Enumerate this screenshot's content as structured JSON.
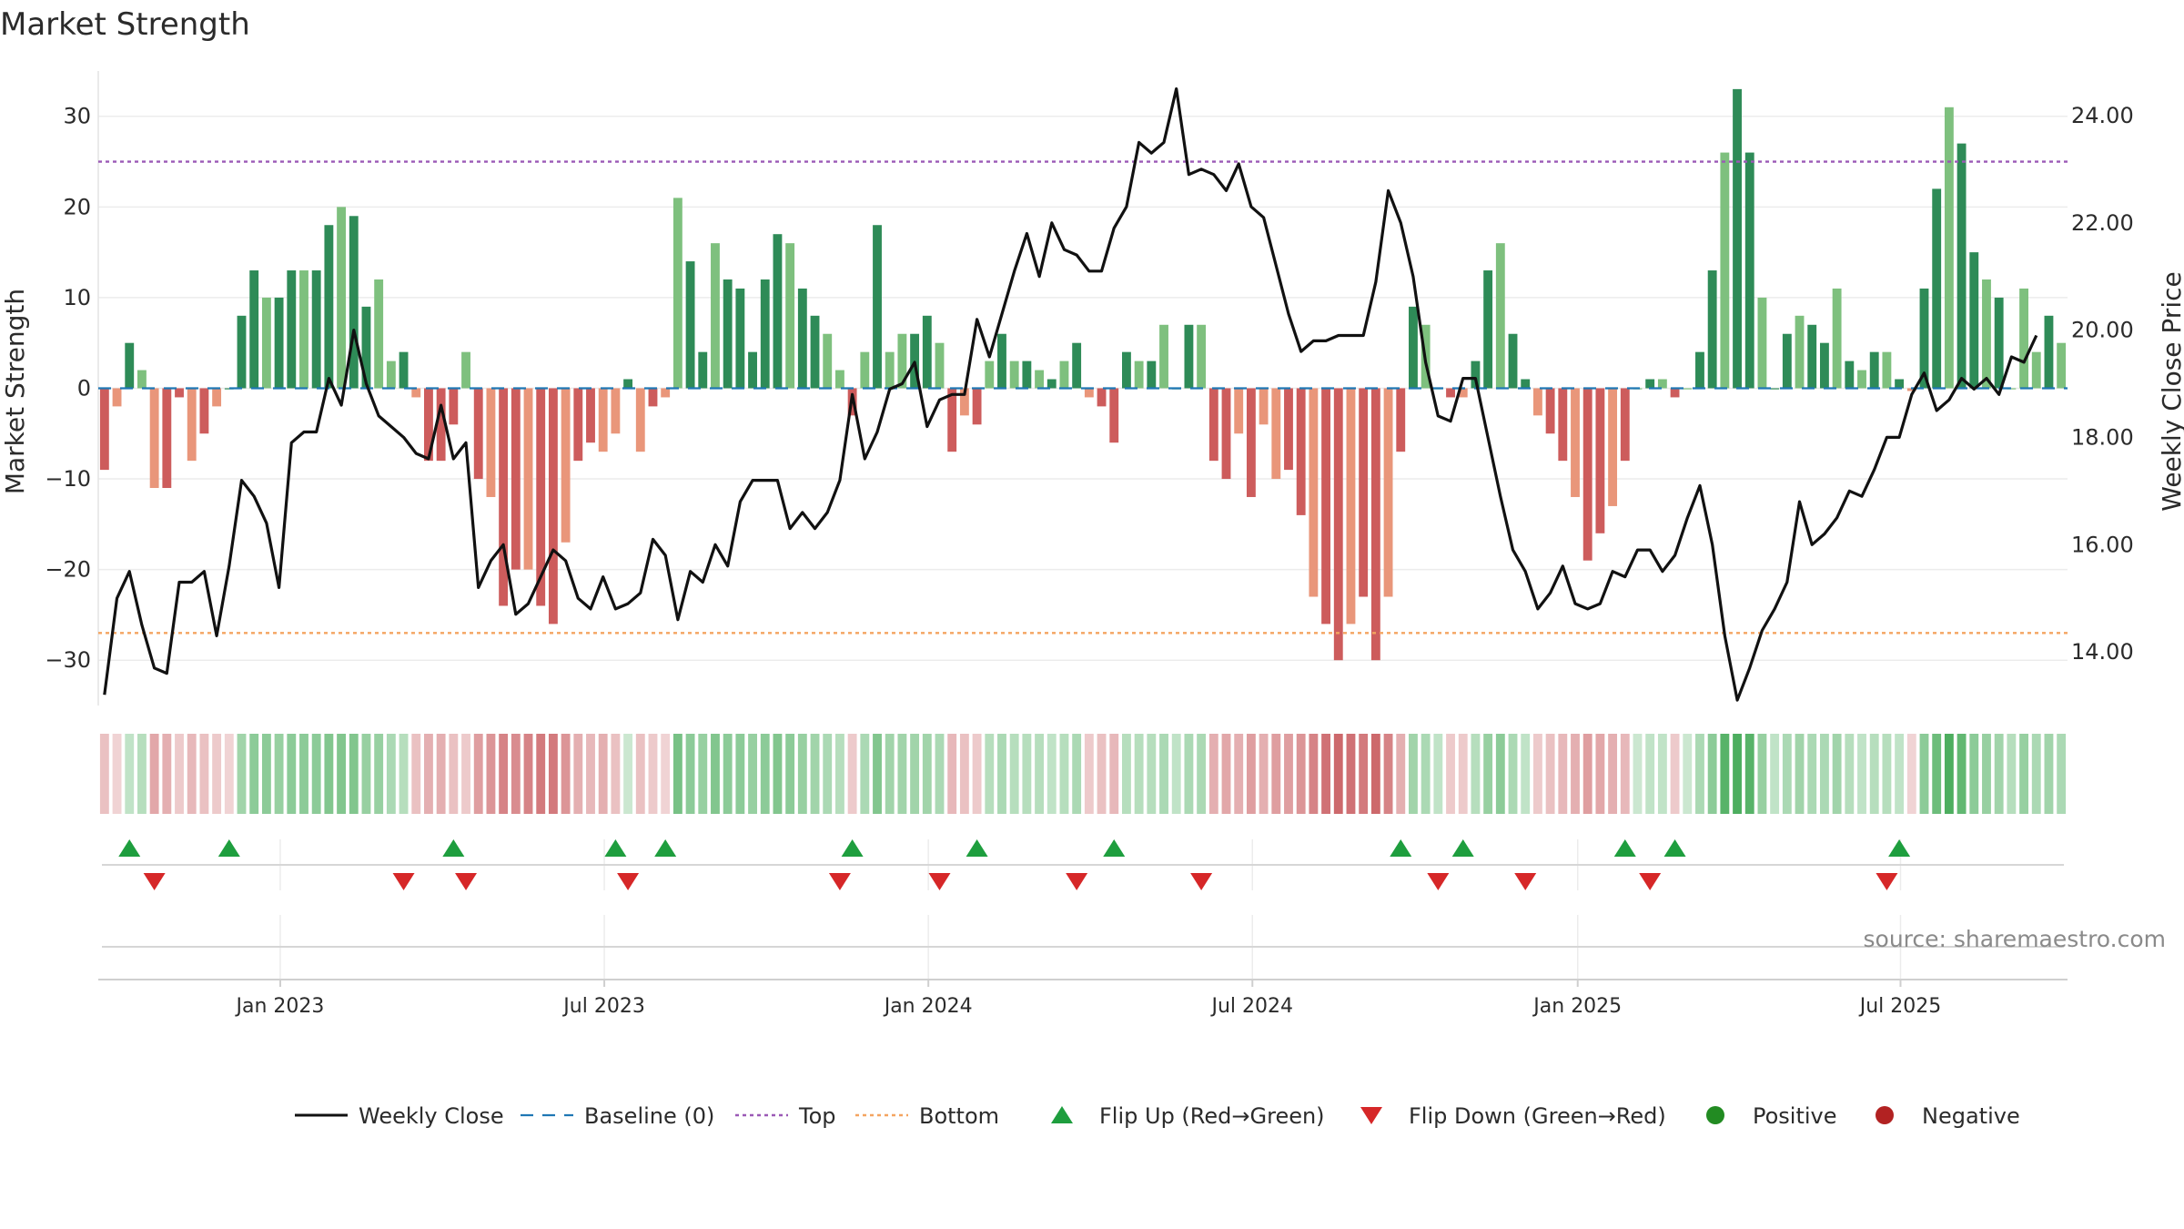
{
  "chart_data": {
    "type": "bar+line",
    "title": "Market Strength",
    "ylabel_left": "Market Strength",
    "ylabel_right": "Weekly Close Price",
    "source": "source: sharemaestro.com",
    "left_yticks": [
      "30",
      "20",
      "10",
      "0",
      "−10",
      "−20",
      "−30"
    ],
    "left_ytick_values": [
      30,
      20,
      10,
      0,
      -10,
      -20,
      -30
    ],
    "left_ylim": [
      -35,
      36
    ],
    "right_yticks": [
      "24.00",
      "22.00",
      "20.00",
      "18.00",
      "16.00",
      "14.00"
    ],
    "right_ytick_values": [
      24,
      22,
      20,
      18,
      16,
      14
    ],
    "right_ylim": [
      13.0,
      25.0
    ],
    "xticks": [
      "Jan 2023",
      "Jul 2023",
      "Jan 2024",
      "Jul 2024",
      "Jan 2025",
      "Jul 2025"
    ],
    "xtick_positions": [
      14.6,
      40.6,
      66.6,
      92.6,
      118.7,
      144.6
    ],
    "start_week": "2022-09-12",
    "top_line": 25,
    "bottom_line": -27,
    "grid": true,
    "colors": {
      "pos_strong": "#2e8b57",
      "pos_weak": "#7ec07e",
      "neg_strong": "#cd5c5c",
      "neg_weak": "#e9967a",
      "line": "#111111",
      "baseline": "#1f77b4",
      "top": "#9b59b6",
      "bottom": "#f4a460",
      "flip_up": "#1e9e3e",
      "flip_down": "#d62728",
      "positive": "#228b22",
      "negative": "#b22222"
    },
    "strength": [
      -9,
      -2,
      5,
      2,
      -11,
      -11,
      -1,
      -8,
      -5,
      -2,
      0,
      8,
      13,
      10,
      10,
      13,
      13,
      13,
      18,
      20,
      19,
      9,
      12,
      3,
      4,
      -1,
      -8,
      -8,
      -4,
      4,
      -10,
      -12,
      -24,
      -20,
      -20,
      -24,
      -26,
      -17,
      -8,
      -6,
      -7,
      -5,
      1,
      -7,
      -2,
      -1,
      21,
      14,
      4,
      16,
      12,
      11,
      4,
      12,
      17,
      16,
      11,
      8,
      6,
      2,
      -3,
      4,
      18,
      4,
      6,
      6,
      8,
      5,
      -7,
      -3,
      -4,
      3,
      6,
      3,
      3,
      2,
      1,
      3,
      5,
      -1,
      -2,
      -6,
      4,
      3,
      3,
      7,
      0,
      7,
      7,
      -8,
      -10,
      -5,
      -12,
      -4,
      -10,
      -9,
      -14,
      -23,
      -26,
      -30,
      -26,
      -23,
      -30,
      -23,
      -7,
      9,
      7,
      0,
      -1,
      -1,
      3,
      13,
      16,
      6,
      1,
      -3,
      -5,
      -8,
      -12,
      -19,
      -16,
      -13,
      -8,
      0,
      1,
      1,
      -1,
      0,
      4,
      13,
      26,
      33,
      26,
      10,
      0,
      6,
      8,
      7,
      5,
      11,
      3,
      2,
      4,
      4,
      1,
      -0.3,
      11,
      22,
      31,
      27,
      15,
      12,
      10,
      0,
      11,
      4,
      8,
      5
    ],
    "close": [
      13.2,
      15.0,
      15.5,
      14.5,
      13.7,
      13.6,
      15.3,
      15.3,
      15.5,
      14.3,
      15.6,
      17.2,
      16.9,
      16.4,
      15.2,
      17.9,
      18.1,
      18.1,
      19.1,
      18.6,
      20.0,
      19.0,
      18.4,
      18.2,
      18.0,
      17.7,
      17.6,
      18.6,
      17.6,
      17.9,
      15.2,
      15.7,
      16.0,
      14.7,
      14.9,
      15.4,
      15.9,
      15.7,
      15.0,
      14.8,
      15.4,
      14.8,
      14.9,
      15.1,
      16.1,
      15.8,
      14.6,
      15.5,
      15.3,
      16.0,
      15.6,
      16.8,
      17.2,
      17.2,
      17.2,
      16.3,
      16.6,
      16.3,
      16.6,
      17.2,
      18.8,
      17.6,
      18.1,
      18.9,
      19.0,
      19.4,
      18.2,
      18.7,
      18.8,
      18.8,
      20.2,
      19.5,
      20.3,
      21.1,
      21.8,
      21.0,
      22.0,
      21.5,
      21.4,
      21.1,
      21.1,
      21.9,
      22.3,
      23.5,
      23.3,
      23.5,
      24.5,
      22.9,
      23.0,
      22.9,
      22.6,
      23.1,
      22.3,
      22.1,
      21.2,
      20.3,
      19.6,
      19.8,
      19.8,
      19.9,
      19.9,
      19.9,
      20.9,
      22.6,
      22.0,
      21.0,
      19.4,
      18.4,
      18.3,
      19.1,
      19.1,
      18.0,
      16.9,
      15.9,
      15.5,
      14.8,
      15.1,
      15.6,
      14.9,
      14.8,
      14.9,
      15.5,
      15.4,
      15.9,
      15.9,
      15.5,
      15.8,
      16.5,
      17.1,
      16.0,
      14.3,
      13.1,
      13.7,
      14.4,
      14.8,
      15.3,
      16.8,
      16.0,
      16.2,
      16.5,
      17.0,
      16.9,
      17.4,
      18.0,
      18.0,
      18.8,
      19.2,
      18.5,
      18.7,
      19.1,
      18.9,
      19.1,
      18.8,
      19.5,
      19.4,
      19.9
    ],
    "heat_strip": [
      -0.35,
      -0.25,
      0.3,
      0.35,
      -0.5,
      -0.45,
      -0.3,
      -0.4,
      -0.35,
      -0.3,
      -0.25,
      0.45,
      0.55,
      0.55,
      0.5,
      0.55,
      0.55,
      0.55,
      0.6,
      0.6,
      0.6,
      0.5,
      0.5,
      0.4,
      0.35,
      -0.35,
      -0.45,
      -0.45,
      -0.35,
      -0.3,
      -0.55,
      -0.6,
      -0.7,
      -0.65,
      -0.7,
      -0.75,
      -0.75,
      -0.6,
      -0.45,
      -0.4,
      -0.45,
      -0.35,
      0.25,
      -0.35,
      -0.3,
      -0.25,
      0.65,
      0.55,
      0.5,
      0.6,
      0.55,
      0.55,
      0.5,
      0.55,
      0.6,
      0.55,
      0.5,
      0.45,
      0.4,
      0.35,
      -0.3,
      0.4,
      0.6,
      0.45,
      0.45,
      0.45,
      0.45,
      0.4,
      -0.4,
      -0.35,
      -0.3,
      0.35,
      0.4,
      0.35,
      0.35,
      0.35,
      0.3,
      0.35,
      0.4,
      -0.3,
      -0.35,
      -0.4,
      0.35,
      0.35,
      0.35,
      0.4,
      0.3,
      0.4,
      0.4,
      -0.45,
      -0.5,
      -0.45,
      -0.55,
      -0.45,
      -0.55,
      -0.55,
      -0.6,
      -0.7,
      -0.8,
      -0.85,
      -0.8,
      -0.75,
      -0.85,
      -0.7,
      -0.45,
      0.45,
      0.4,
      0.3,
      -0.3,
      -0.3,
      0.35,
      0.5,
      0.55,
      0.4,
      0.3,
      -0.3,
      -0.35,
      -0.4,
      -0.45,
      -0.55,
      -0.5,
      -0.45,
      -0.4,
      0.25,
      0.3,
      0.3,
      -0.3,
      0.25,
      0.4,
      0.55,
      0.8,
      0.85,
      0.8,
      0.5,
      0.3,
      0.4,
      0.45,
      0.4,
      0.4,
      0.45,
      0.35,
      0.3,
      0.35,
      0.35,
      0.3,
      -0.25,
      0.55,
      0.7,
      0.85,
      0.75,
      0.55,
      0.5,
      0.45,
      0.35,
      0.5,
      0.4,
      0.45,
      0.4
    ],
    "flip_up_weeks": [
      2,
      10,
      28,
      41,
      45,
      60,
      70,
      81,
      104,
      109,
      122,
      126,
      144
    ],
    "flip_down_weeks": [
      4,
      24,
      29,
      42,
      59,
      67,
      78,
      88,
      107,
      114,
      124,
      143
    ],
    "legend": [
      {
        "label": "Weekly Close",
        "kind": "line"
      },
      {
        "label": "Baseline (0)",
        "kind": "dash"
      },
      {
        "label": "Top",
        "kind": "dot"
      },
      {
        "label": "Bottom",
        "kind": "dot2"
      },
      {
        "label": "Flip Up (Red→Green)",
        "kind": "up"
      },
      {
        "label": "Flip Down (Green→Red)",
        "kind": "down"
      },
      {
        "label": "Positive",
        "kind": "pos"
      },
      {
        "label": "Negative",
        "kind": "neg"
      }
    ]
  }
}
